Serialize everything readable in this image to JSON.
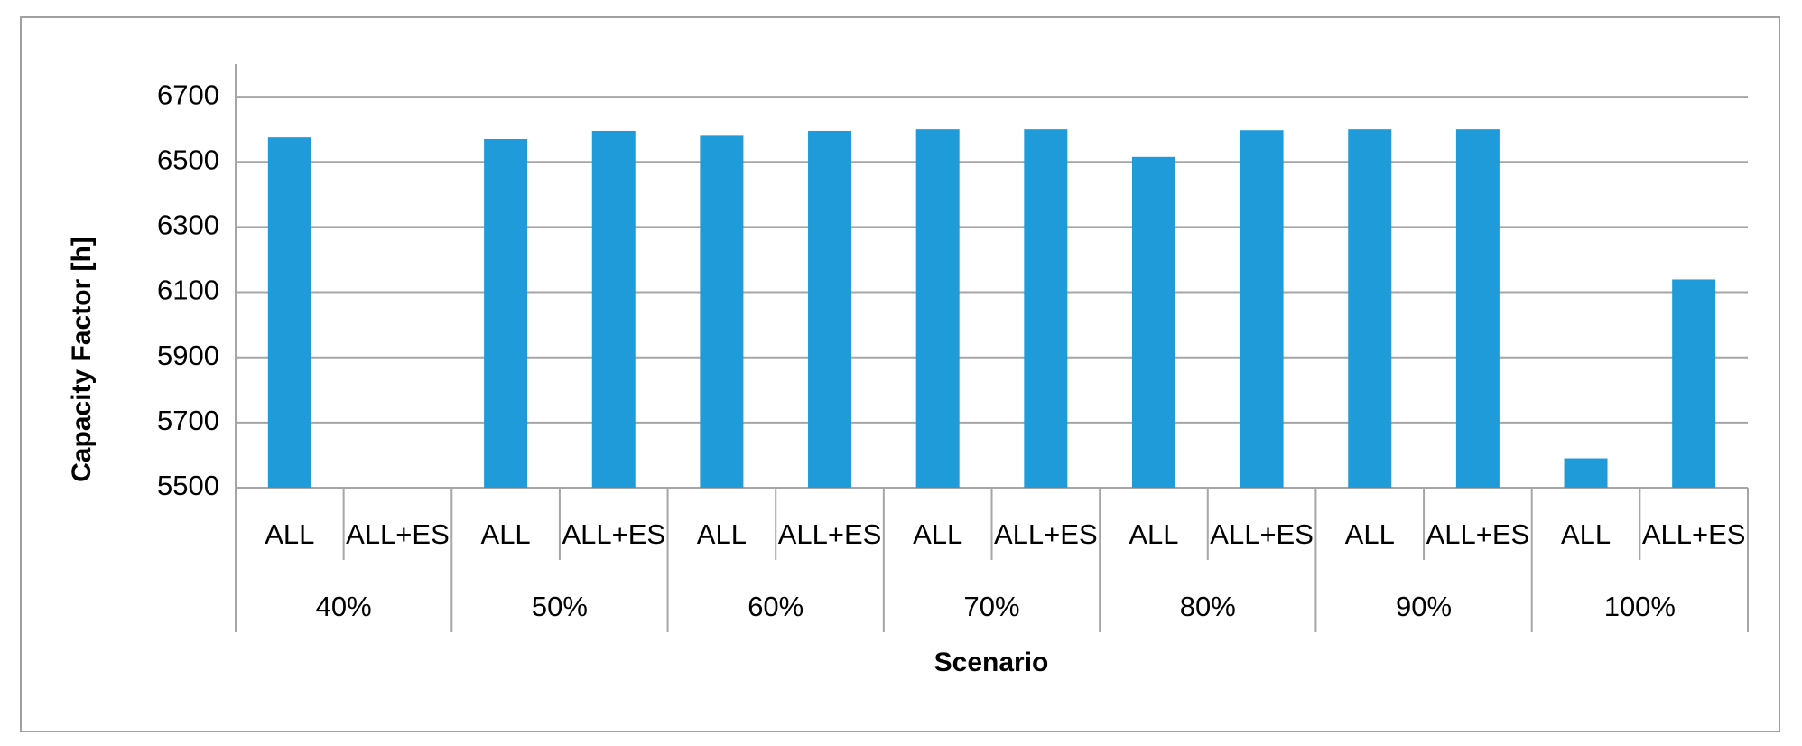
{
  "chart_data": {
    "type": "bar",
    "y_label": "Capacity Factor [h]",
    "x_label": "Scenario",
    "categories": [
      "ALL",
      "ALL+ES",
      "ALL",
      "ALL+ES",
      "ALL",
      "ALL+ES",
      "ALL",
      "ALL+ES",
      "ALL",
      "ALL+ES",
      "ALL",
      "ALL+ES",
      "ALL",
      "ALL+ES"
    ],
    "groups": [
      "40%",
      "50%",
      "60%",
      "70%",
      "80%",
      "90%",
      "100%"
    ],
    "values": [
      6575,
      null,
      6570,
      6595,
      6580,
      6595,
      6600,
      6600,
      6515,
      6597,
      6600,
      6600,
      5590,
      6139
    ],
    "color": "#1f9bd9",
    "ylim": [
      5500,
      6800
    ],
    "yticks": [
      5500,
      5700,
      5900,
      6100,
      6300,
      6500,
      6700
    ],
    "grid": true
  }
}
